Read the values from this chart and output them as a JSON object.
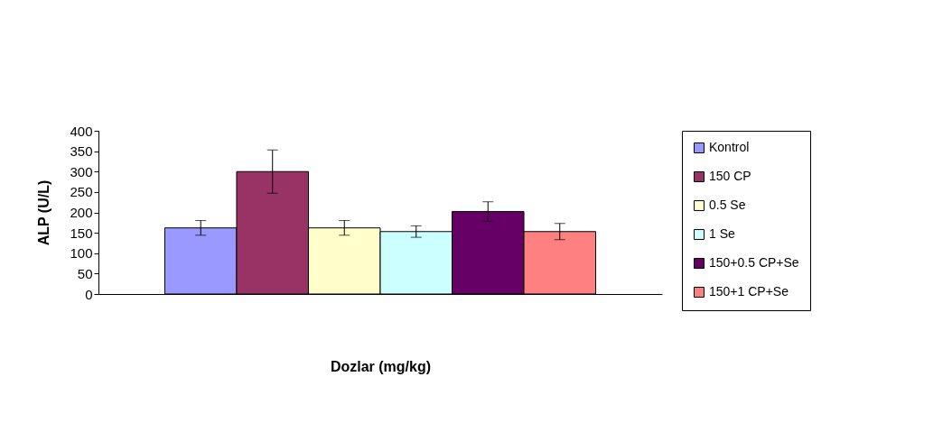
{
  "chart_data": {
    "type": "bar",
    "ylabel": "ALP (U/L)",
    "xlabel": "Dozlar (mg/kg)",
    "categories": [
      null
    ],
    "ylim": [
      0,
      400
    ],
    "yticks": [
      0,
      50,
      100,
      150,
      200,
      250,
      300,
      350,
      400
    ],
    "grid": false,
    "legend": "right",
    "series": [
      {
        "name": "Kontrol",
        "color": "#9999ff",
        "values": [
          162
        ],
        "errors": [
          18
        ]
      },
      {
        "name": "150 CP",
        "color": "#993366",
        "values": [
          300
        ],
        "errors": [
          53
        ]
      },
      {
        "name": "0.5 Se",
        "color": "#ffffcc",
        "values": [
          162
        ],
        "errors": [
          18
        ]
      },
      {
        "name": "1 Se",
        "color": "#ccffff",
        "values": [
          153
        ],
        "errors": [
          14
        ]
      },
      {
        "name": "150+0.5 CP+Se",
        "color": "#660066",
        "values": [
          202
        ],
        "errors": [
          24
        ]
      },
      {
        "name": "150+1 CP+Se",
        "color": "#ff8080",
        "values": [
          153
        ],
        "errors": [
          20
        ]
      }
    ]
  }
}
